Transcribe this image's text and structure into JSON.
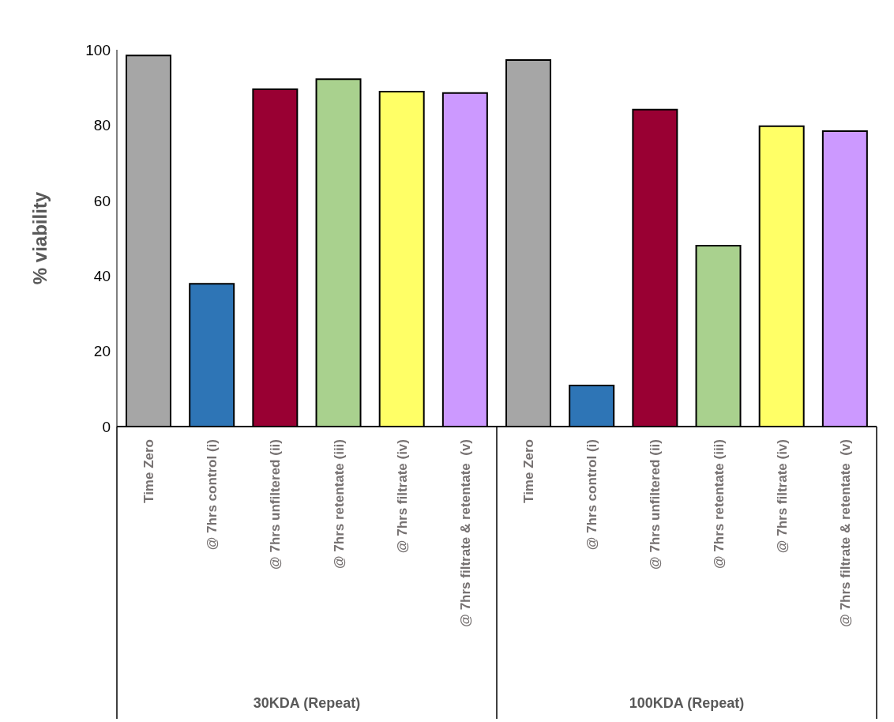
{
  "chart_data": {
    "type": "bar",
    "ylabel": "% viability",
    "categories": [
      "Time Zero",
      "@ 7hrs control (i)",
      "@ 7hrs unfiltered (ii)",
      "@ 7hrs retentate (iii)",
      "@ 7hrs filtrate (iv)",
      "@ 7hrs filtrate & retentate  (v)",
      "Time Zero",
      "@ 7hrs control (i)",
      "@ 7hrs unfiltered (ii)",
      "@ 7hrs retentate (iii)",
      "@ 7hrs filtrate (iv)",
      "@ 7hrs filtrate & retentate  (v)"
    ],
    "values": [
      98.5,
      37.9,
      89.5,
      92.2,
      88.9,
      88.5,
      97.3,
      10.9,
      84.1,
      48.0,
      79.7,
      78.4
    ],
    "colors": [
      "#a6a6a6",
      "#2e75b6",
      "#990033",
      "#a9d18e",
      "#ffff66",
      "#cc99ff",
      "#a6a6a6",
      "#2e75b6",
      "#990033",
      "#a9d18e",
      "#ffff66",
      "#cc99ff"
    ],
    "ylim": [
      0,
      100
    ],
    "yticks": [
      0,
      20,
      40,
      60,
      80,
      100
    ],
    "grid": false,
    "annotations": [
      "30KDA (Repeat)",
      "100KDA (Repeat)"
    ]
  }
}
